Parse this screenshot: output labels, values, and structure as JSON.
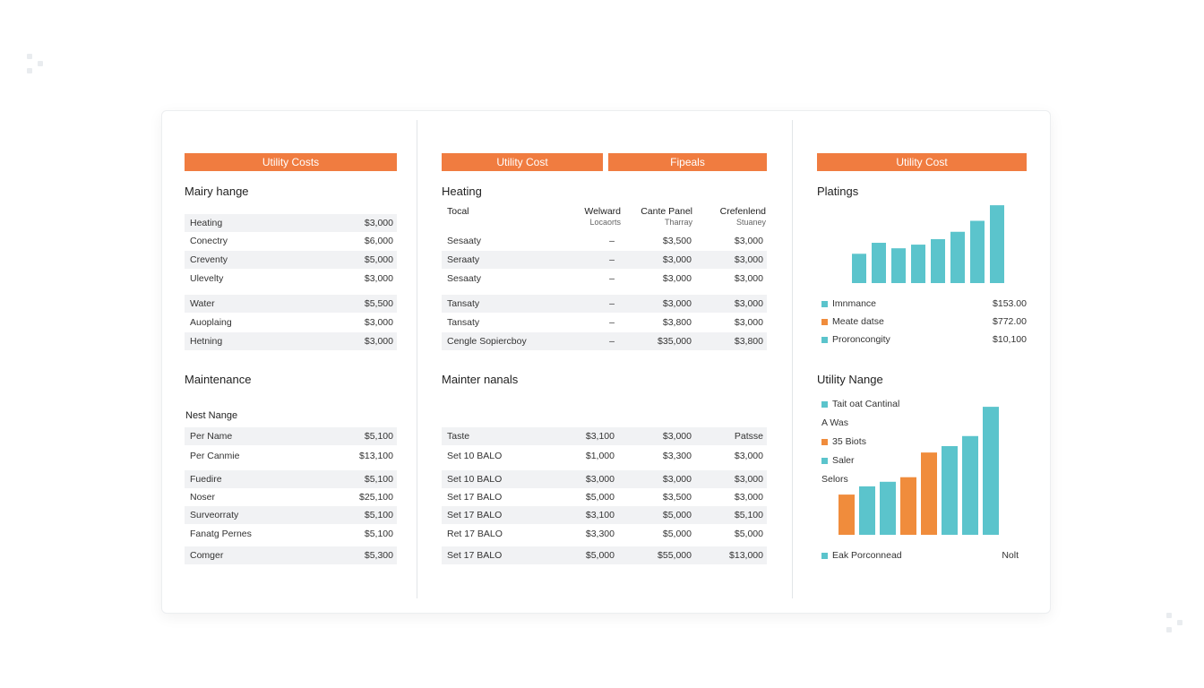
{
  "colors": {
    "accent": "#f07c40",
    "teal": "#5bc4cc",
    "orange": "#f08c3c"
  },
  "left": {
    "banner": "Utility Costs",
    "heading": "Mairy hange",
    "rows1": [
      {
        "label": "Heating",
        "value": "$3,000"
      },
      {
        "label": "Conectry",
        "value": "$6,000"
      },
      {
        "label": "Creventy",
        "value": "$5,000"
      },
      {
        "label": "Ulevelty",
        "value": "$3,000"
      },
      {
        "label": "Water",
        "value": "$5,500"
      },
      {
        "label": "Auoplaing",
        "value": "$3,000"
      },
      {
        "label": "Hetning",
        "value": "$3,000"
      }
    ],
    "heading2": "Maintenance",
    "subheading": "Nest Nange",
    "rows2": [
      {
        "label": "Per Name",
        "value": "$5,100"
      },
      {
        "label": "Per Canmie",
        "value": "$13,100"
      },
      {
        "label": "Fuedire",
        "value": "$5,100"
      },
      {
        "label": "Noser",
        "value": "$25,100"
      },
      {
        "label": "Surveorraty",
        "value": "$5,100"
      },
      {
        "label": "Fanatg Pernes",
        "value": "$5,100"
      },
      {
        "label": "Comger",
        "value": "$5,300"
      }
    ]
  },
  "middle": {
    "banner1": "Utility Cost",
    "banner2": "Fipeals",
    "heading": "Heating",
    "cols": {
      "first": "Tocal",
      "c1": "Welward",
      "c1sub": "Locaorts",
      "c2": "Cante Panel",
      "c2sub": "Tharray",
      "c3": "Crefenlend",
      "c3sub": "Stuaney"
    },
    "rows1": [
      {
        "label": "Sesaaty",
        "a": "–",
        "b": "$3,500",
        "c": "$3,000"
      },
      {
        "label": "Seraaty",
        "a": "–",
        "b": "$3,000",
        "c": "$3,000"
      },
      {
        "label": "Sesaaty",
        "a": "–",
        "b": "$3,000",
        "c": "$3,000"
      },
      {
        "label": "Tansaty",
        "a": "–",
        "b": "$3,000",
        "c": "$3,000"
      },
      {
        "label": "Tansaty",
        "a": "–",
        "b": "$3,800",
        "c": "$3,000"
      },
      {
        "label": "Cengle Sopiercboy",
        "a": "–",
        "b": "$35,000",
        "c": "$3,800"
      }
    ],
    "heading2": "Mainter nanals",
    "header2": {
      "label": "Taste",
      "a": "$3,100",
      "b": "$3,000",
      "c": "Patsse"
    },
    "rows2": [
      {
        "label": "Set 10 BALO",
        "a": "$1,000",
        "b": "$3,300",
        "c": "$3,000"
      },
      {
        "label": "Set 10 BALO",
        "a": "$3,000",
        "b": "$3,000",
        "c": "$3,000"
      },
      {
        "label": "Set 17 BALO",
        "a": "$5,000",
        "b": "$3,500",
        "c": "$3,000"
      },
      {
        "label": "Set 17 BALO",
        "a": "$3,100",
        "b": "$5,000",
        "c": "$5,100"
      },
      {
        "label": "Ret 17 BALO",
        "a": "$3,300",
        "b": "$5,000",
        "c": "$5,000"
      },
      {
        "label": "Set 17 BALO",
        "a": "$5,000",
        "b": "$55,000",
        "c": "$13,000"
      }
    ]
  },
  "right": {
    "banner": "Utility Cost",
    "heading": "Platings",
    "legend1": [
      {
        "label": "Imnmance",
        "value": "$153.00",
        "color": "#5bc4cc"
      },
      {
        "label": "Meate datse",
        "value": "$772.00",
        "color": "#f08c3c"
      },
      {
        "label": "Proroncongity",
        "value": "$10,100",
        "color": "#5bc4cc"
      }
    ],
    "heading2": "Utility Nange",
    "legend2": [
      {
        "label": "Tait oat Cantinal",
        "color": "#5bc4cc"
      },
      {
        "label": "A Was",
        "color": ""
      },
      {
        "label": "35 Biots",
        "color": "#f08c3c"
      },
      {
        "label": "Saler",
        "color": "#5bc4cc"
      },
      {
        "label": "Selors",
        "color": ""
      }
    ],
    "footer_left": "Eak Porconnead",
    "footer_right": "Nolt"
  },
  "chart_data": [
    {
      "type": "bar",
      "title": "Platings",
      "categories": [
        "1",
        "2",
        "3",
        "4",
        "5",
        "6",
        "7",
        "8"
      ],
      "values": [
        32,
        44,
        38,
        42,
        48,
        56,
        68,
        85
      ],
      "colors": [
        "#5bc4cc",
        "#5bc4cc",
        "#5bc4cc",
        "#5bc4cc",
        "#5bc4cc",
        "#5bc4cc",
        "#5bc4cc",
        "#5bc4cc"
      ],
      "ylim": [
        0,
        90
      ],
      "grid": false
    },
    {
      "type": "bar",
      "title": "Utility Nange",
      "categories": [
        "1",
        "2",
        "3",
        "4",
        "5",
        "6",
        "7",
        "8",
        "9"
      ],
      "values": [
        44,
        53,
        58,
        63,
        90,
        97,
        108,
        140,
        0
      ],
      "colors": [
        "#f08c3c",
        "#5bc4cc",
        "#5bc4cc",
        "#f08c3c",
        "#f08c3c",
        "#5bc4cc",
        "#5bc4cc",
        "#5bc4cc",
        "#5bc4cc"
      ],
      "ylim": [
        0,
        145
      ],
      "grid": false
    }
  ]
}
